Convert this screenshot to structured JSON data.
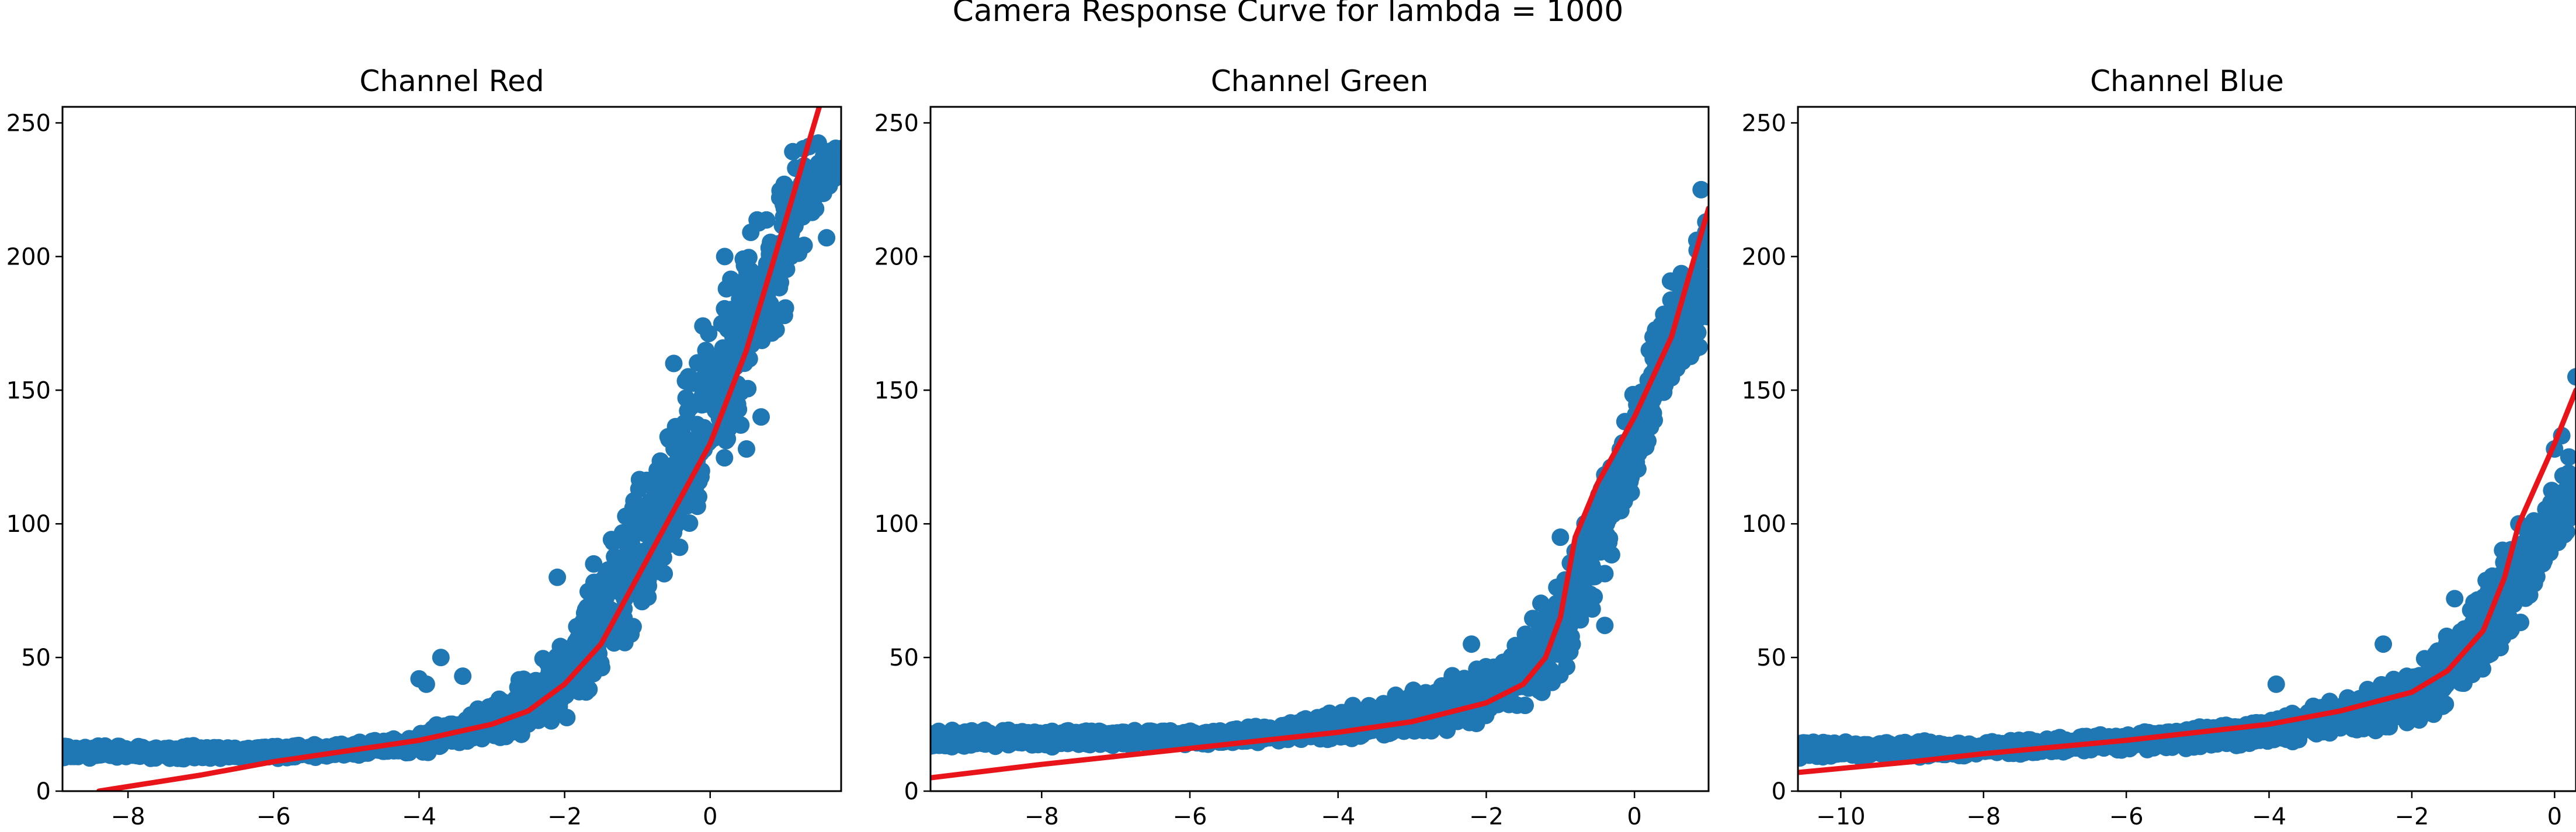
{
  "figure": {
    "title": "Camera Response Curve for lambda = 1000"
  },
  "chart_data": [
    {
      "type": "scatter",
      "title": "Channel Red",
      "xlabel": "",
      "ylabel": "",
      "xlim": [
        -8.9,
        1.8
      ],
      "ylim": [
        0,
        256
      ],
      "xticks": [
        -8,
        -6,
        -4,
        -2,
        0
      ],
      "yticks": [
        0,
        50,
        100,
        150,
        200,
        250
      ],
      "grid": false,
      "scatter_color": "#1f77b4",
      "line_color": "#e8141a",
      "band": [
        [
          -8.9,
          12,
          17
        ],
        [
          -6.0,
          12,
          17
        ],
        [
          -5.0,
          13,
          18
        ],
        [
          -4.0,
          14,
          22
        ],
        [
          -3.0,
          17,
          35
        ],
        [
          -2.4,
          22,
          48
        ],
        [
          -2.0,
          25,
          58
        ],
        [
          -1.5,
          38,
          88
        ],
        [
          -1.0,
          58,
          118
        ],
        [
          -0.5,
          80,
          146
        ],
        [
          0.0,
          105,
          178
        ],
        [
          0.5,
          140,
          212
        ],
        [
          1.0,
          175,
          240
        ],
        [
          1.4,
          210,
          245
        ],
        [
          1.8,
          232,
          245
        ]
      ],
      "outliers": [
        [
          -4.0,
          42
        ],
        [
          -3.9,
          40
        ],
        [
          -3.7,
          50
        ],
        [
          -3.4,
          43
        ],
        [
          -2.1,
          80
        ],
        [
          -1.6,
          85
        ],
        [
          -0.5,
          160
        ],
        [
          -0.3,
          155
        ],
        [
          -0.1,
          174
        ],
        [
          0.2,
          200
        ],
        [
          0.5,
          128
        ],
        [
          0.7,
          140
        ],
        [
          0.9,
          203
        ],
        [
          1.1,
          215
        ],
        [
          1.6,
          207
        ]
      ],
      "series": [
        {
          "type": "line",
          "x": [
            -8.4,
            -7.0,
            -6.0,
            -5.0,
            -4.0,
            -3.0,
            -2.5,
            -2.0,
            -1.5,
            -1.0,
            -0.5,
            0.0,
            0.5,
            1.0,
            1.5
          ],
          "y": [
            0,
            6,
            11,
            15,
            19,
            25,
            30,
            40,
            55,
            80,
            105,
            130,
            165,
            210,
            256
          ]
        }
      ]
    },
    {
      "type": "scatter",
      "title": "Channel Green",
      "xlabel": "",
      "ylabel": "",
      "xlim": [
        -9.5,
        1.0
      ],
      "ylim": [
        0,
        256
      ],
      "xticks": [
        -8,
        -6,
        -4,
        -2,
        0
      ],
      "yticks": [
        0,
        50,
        100,
        150,
        200,
        250
      ],
      "grid": false,
      "scatter_color": "#1f77b4",
      "line_color": "#e8141a",
      "band": [
        [
          -9.5,
          16,
          23
        ],
        [
          -6.0,
          17,
          23
        ],
        [
          -5.0,
          18,
          25
        ],
        [
          -4.0,
          18,
          30
        ],
        [
          -3.0,
          20,
          38
        ],
        [
          -2.0,
          25,
          48
        ],
        [
          -1.5,
          30,
          62
        ],
        [
          -1.0,
          40,
          82
        ],
        [
          -0.5,
          72,
          115
        ],
        [
          0.0,
          108,
          150
        ],
        [
          0.5,
          148,
          195
        ],
        [
          1.0,
          170,
          222
        ]
      ],
      "outliers": [
        [
          -3.8,
          32
        ],
        [
          -2.2,
          55
        ],
        [
          -1.0,
          95
        ],
        [
          -0.4,
          62
        ],
        [
          0.2,
          165
        ],
        [
          0.8,
          165
        ],
        [
          0.9,
          225
        ]
      ],
      "series": [
        {
          "type": "line",
          "x": [
            -9.5,
            -8.0,
            -6.0,
            -5.0,
            -4.0,
            -3.0,
            -2.0,
            -1.5,
            -1.2,
            -1.0,
            -0.8,
            -0.5,
            0.0,
            0.5,
            1.0
          ],
          "y": [
            5,
            10,
            16,
            19,
            22,
            26,
            33,
            40,
            50,
            65,
            95,
            115,
            140,
            170,
            218
          ]
        }
      ]
    },
    {
      "type": "scatter",
      "title": "Channel Blue",
      "xlabel": "",
      "ylabel": "",
      "xlim": [
        -10.6,
        0.3
      ],
      "ylim": [
        0,
        256
      ],
      "xticks": [
        -10,
        -8,
        -6,
        -4,
        -2,
        0
      ],
      "yticks": [
        0,
        50,
        100,
        150,
        200,
        250
      ],
      "grid": false,
      "scatter_color": "#1f77b4",
      "line_color": "#e8141a",
      "band": [
        [
          -10.6,
          12,
          19
        ],
        [
          -8.0,
          13,
          19
        ],
        [
          -6.0,
          15,
          22
        ],
        [
          -5.0,
          16,
          24
        ],
        [
          -4.0,
          17,
          28
        ],
        [
          -3.0,
          20,
          35
        ],
        [
          -2.0,
          24,
          45
        ],
        [
          -1.5,
          30,
          60
        ],
        [
          -1.0,
          40,
          80
        ],
        [
          -0.5,
          60,
          100
        ],
        [
          0.0,
          85,
          115
        ],
        [
          0.3,
          100,
          125
        ]
      ],
      "outliers": [
        [
          -3.9,
          40
        ],
        [
          -2.4,
          55
        ],
        [
          -1.4,
          72
        ],
        [
          -0.5,
          100
        ],
        [
          0.0,
          128
        ],
        [
          0.1,
          133
        ],
        [
          0.2,
          125
        ],
        [
          0.3,
          155
        ]
      ],
      "series": [
        {
          "type": "line",
          "x": [
            -10.6,
            -9.0,
            -8.0,
            -6.0,
            -4.0,
            -3.0,
            -2.0,
            -1.5,
            -1.0,
            -0.7,
            -0.5,
            0.0,
            0.3
          ],
          "y": [
            7,
            11,
            14,
            19,
            25,
            30,
            37,
            45,
            60,
            80,
            100,
            130,
            150
          ]
        }
      ]
    }
  ]
}
